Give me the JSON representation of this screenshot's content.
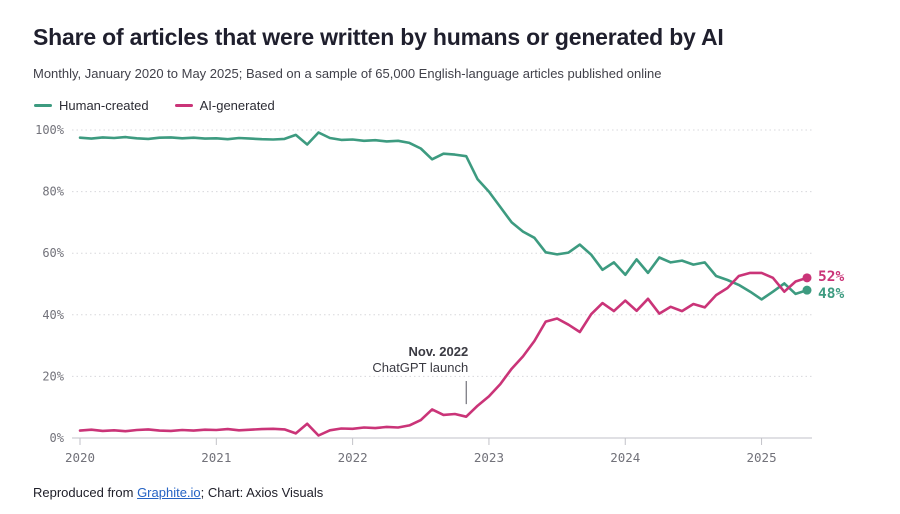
{
  "header": {
    "title": "Share of articles that were written by humans or generated by AI",
    "subtitle": "Monthly, January 2020 to May 2025; Based on a sample of 65,000 English-language articles published online"
  },
  "chart_data": {
    "type": "line",
    "title": "Share of articles that were written by humans or generated by AI",
    "x_unit": "month",
    "x_start": "2020-01",
    "x_end": "2025-05",
    "x_tick_labels": [
      "2020",
      "2021",
      "2022",
      "2023",
      "2024",
      "2025"
    ],
    "y_tick_labels": [
      "0%",
      "20%",
      "40%",
      "60%",
      "80%",
      "100%"
    ],
    "ylim": [
      0,
      100
    ],
    "grid": "horizontal-dotted",
    "legend_position": "top-left",
    "series": [
      {
        "name": "Human-created",
        "color": "#3d9b80",
        "end_label": "48%",
        "values": [
          97.5,
          97.2,
          97.6,
          97.4,
          97.7,
          97.3,
          97.1,
          97.5,
          97.6,
          97.3,
          97.5,
          97.2,
          97.3,
          97.0,
          97.4,
          97.2,
          97.0,
          96.9,
          97.1,
          98.4,
          95.3,
          99.2,
          97.4,
          96.8,
          96.9,
          96.5,
          96.7,
          96.3,
          96.5,
          95.8,
          94.0,
          90.5,
          92.3,
          92.0,
          91.5,
          84.0,
          80.0,
          75.0,
          70.0,
          67.0,
          65.0,
          60.3,
          59.6,
          60.2,
          62.8,
          59.5,
          54.6,
          57.0,
          53.0,
          58.0,
          53.6,
          58.6,
          57.0,
          57.6,
          56.3,
          57.0,
          52.6,
          51.3,
          49.7,
          47.5,
          45.0,
          47.5,
          50.2,
          46.8,
          48.0
        ]
      },
      {
        "name": "AI-generated",
        "color": "#ca3478",
        "end_label": "52%",
        "values": [
          2.4,
          2.7,
          2.3,
          2.5,
          2.2,
          2.6,
          2.8,
          2.4,
          2.3,
          2.6,
          2.4,
          2.7,
          2.6,
          2.9,
          2.5,
          2.7,
          2.9,
          3.0,
          2.8,
          1.5,
          4.6,
          0.8,
          2.5,
          3.1,
          3.0,
          3.4,
          3.2,
          3.6,
          3.4,
          4.1,
          5.8,
          9.3,
          7.5,
          7.8,
          6.9,
          10.5,
          13.5,
          17.5,
          22.5,
          26.5,
          31.5,
          37.8,
          38.8,
          36.8,
          34.4,
          40.2,
          43.8,
          41.2,
          44.6,
          41.3,
          45.2,
          40.4,
          42.6,
          41.2,
          43.5,
          42.4,
          46.4,
          48.7,
          52.6,
          53.6,
          53.6,
          52.0,
          47.5,
          50.8,
          52.0
        ]
      }
    ],
    "annotation": {
      "title": "Nov. 2022",
      "text": "ChatGPT launch",
      "x_month": "2022-11",
      "pointer_top_pct": 18.5,
      "pointer_bottom_pct": 11.0
    }
  },
  "footer": {
    "prefix": "Reproduced from ",
    "link_text": "Graphite.io",
    "suffix": "; Chart: Axios Visuals"
  }
}
